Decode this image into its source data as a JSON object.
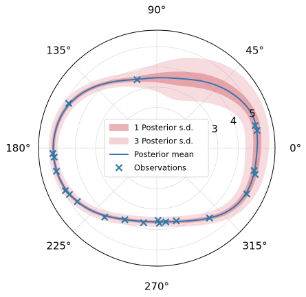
{
  "chart_data": {
    "type": "polar",
    "title": "",
    "angle_unit": "degrees",
    "r_range": [
      0,
      5.8
    ],
    "grid": true,
    "angle_ticks": [
      {
        "angle": 0,
        "label": "0°"
      },
      {
        "angle": 45,
        "label": "45°"
      },
      {
        "angle": 90,
        "label": "90°"
      },
      {
        "angle": 135,
        "label": "135°"
      },
      {
        "angle": 180,
        "label": "180°"
      },
      {
        "angle": 225,
        "label": "225°"
      },
      {
        "angle": 270,
        "label": "270°"
      },
      {
        "angle": 315,
        "label": "315°"
      }
    ],
    "radial_ticks": [
      {
        "value": 1,
        "label": ""
      },
      {
        "value": 2,
        "label": ""
      },
      {
        "value": 3,
        "label": "3"
      },
      {
        "value": 4,
        "label": "4"
      },
      {
        "value": 5,
        "label": "5"
      }
    ],
    "radial_label_angle": 22.5,
    "legend": {
      "position": "center",
      "entries": [
        {
          "label": "1 Posterior s.d.",
          "kind": "band1"
        },
        {
          "label": "3 Posterior s.d.",
          "kind": "band3"
        },
        {
          "label": "Posterior mean",
          "kind": "line"
        },
        {
          "label": "Observations",
          "kind": "marker"
        }
      ]
    },
    "colors": {
      "band1": "#d9747b",
      "band1_opacity": 0.55,
      "band3": "#e8a2ab",
      "band3_opacity": 0.38,
      "mean": "#3278b5",
      "observations": "#2a7aa8"
    },
    "mean": [
      {
        "theta": 0,
        "r": 4.9
      },
      {
        "theta": 10,
        "r": 5.0
      },
      {
        "theta": 20,
        "r": 5.0
      },
      {
        "theta": 30,
        "r": 4.75
      },
      {
        "theta": 40,
        "r": 4.45
      },
      {
        "theta": 50,
        "r": 4.15
      },
      {
        "theta": 60,
        "r": 3.85
      },
      {
        "theta": 70,
        "r": 3.6
      },
      {
        "theta": 80,
        "r": 3.5
      },
      {
        "theta": 90,
        "r": 3.45
      },
      {
        "theta": 100,
        "r": 3.45
      },
      {
        "theta": 110,
        "r": 3.55
      },
      {
        "theta": 120,
        "r": 3.8
      },
      {
        "theta": 130,
        "r": 4.1
      },
      {
        "theta": 140,
        "r": 4.45
      },
      {
        "theta": 150,
        "r": 4.75
      },
      {
        "theta": 160,
        "r": 4.95
      },
      {
        "theta": 170,
        "r": 5.05
      },
      {
        "theta": 180,
        "r": 5.1
      },
      {
        "theta": 190,
        "r": 5.05
      },
      {
        "theta": 200,
        "r": 5.0
      },
      {
        "theta": 210,
        "r": 4.8
      },
      {
        "theta": 220,
        "r": 4.55
      },
      {
        "theta": 230,
        "r": 4.25
      },
      {
        "theta": 240,
        "r": 3.95
      },
      {
        "theta": 250,
        "r": 3.75
      },
      {
        "theta": 260,
        "r": 3.65
      },
      {
        "theta": 270,
        "r": 3.6
      },
      {
        "theta": 280,
        "r": 3.65
      },
      {
        "theta": 290,
        "r": 3.8
      },
      {
        "theta": 300,
        "r": 4.05
      },
      {
        "theta": 310,
        "r": 4.4
      },
      {
        "theta": 320,
        "r": 4.75
      },
      {
        "theta": 330,
        "r": 4.9
      },
      {
        "theta": 340,
        "r": 4.95
      },
      {
        "theta": 350,
        "r": 4.9
      }
    ],
    "band1_sd": [
      {
        "theta": 0,
        "sd": 0.2
      },
      {
        "theta": 20,
        "sd": 0.2
      },
      {
        "theta": 30,
        "sd": 0.28
      },
      {
        "theta": 45,
        "sd": 0.38
      },
      {
        "theta": 60,
        "sd": 0.4
      },
      {
        "theta": 75,
        "sd": 0.35
      },
      {
        "theta": 90,
        "sd": 0.22
      },
      {
        "theta": 110,
        "sd": 0.12
      },
      {
        "theta": 130,
        "sd": 0.1
      },
      {
        "theta": 150,
        "sd": 0.1
      },
      {
        "theta": 180,
        "sd": 0.07
      },
      {
        "theta": 210,
        "sd": 0.08
      },
      {
        "theta": 240,
        "sd": 0.09
      },
      {
        "theta": 270,
        "sd": 0.08
      },
      {
        "theta": 300,
        "sd": 0.1
      },
      {
        "theta": 330,
        "sd": 0.14
      },
      {
        "theta": 360,
        "sd": 0.2
      }
    ],
    "observations": [
      {
        "theta": 10,
        "r": 5.0
      },
      {
        "theta": 13,
        "r": 4.95
      },
      {
        "theta": 345,
        "r": 5.0
      },
      {
        "theta": 347,
        "r": 4.9
      },
      {
        "theta": 106,
        "r": 3.5
      },
      {
        "theta": 153,
        "r": 4.85
      },
      {
        "theta": 183,
        "r": 5.1
      },
      {
        "theta": 185,
        "r": 5.05
      },
      {
        "theta": 193,
        "r": 5.05
      },
      {
        "theta": 205,
        "r": 4.95
      },
      {
        "theta": 208,
        "r": 4.85
      },
      {
        "theta": 214,
        "r": 4.7
      },
      {
        "theta": 233,
        "r": 4.25
      },
      {
        "theta": 246,
        "r": 3.85
      },
      {
        "theta": 260,
        "r": 3.72
      },
      {
        "theta": 271,
        "r": 3.55
      },
      {
        "theta": 272,
        "r": 3.7
      },
      {
        "theta": 277,
        "r": 3.65
      },
      {
        "theta": 285,
        "r": 3.7
      },
      {
        "theta": 307,
        "r": 4.3
      },
      {
        "theta": 333,
        "r": 4.95
      }
    ]
  }
}
